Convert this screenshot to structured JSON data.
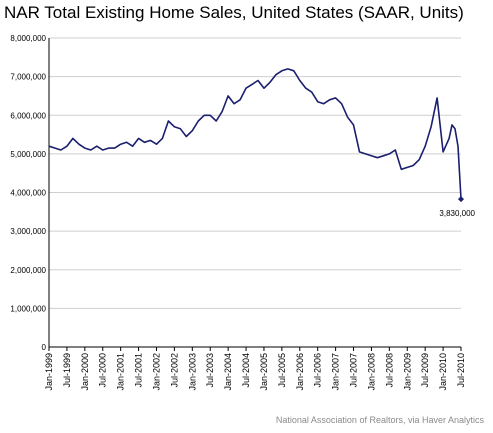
{
  "title": "NAR Total Existing Home Sales, United States (SAAR, Units)",
  "source": "National Association of Realtors, via Haver Analytics",
  "chart_data": {
    "type": "line",
    "title": "NAR Total Existing Home Sales, United States (SAAR, Units)",
    "xlabel": "",
    "ylabel": "",
    "ylim": [
      0,
      8000000
    ],
    "xlim": [
      "1999-01",
      "2010-07"
    ],
    "grid": "horizontal",
    "line_color": "#1a1f6e",
    "yticks": [
      0,
      1000000,
      2000000,
      3000000,
      4000000,
      5000000,
      6000000,
      7000000,
      8000000
    ],
    "ytick_labels": [
      "0",
      "1,000,000",
      "2,000,000",
      "3,000,000",
      "4,000,000",
      "5,000,000",
      "6,000,000",
      "7,000,000",
      "8,000,000"
    ],
    "xtick_labels": [
      "Jan-1999",
      "Jul-1999",
      "Jan-2000",
      "Jul-2000",
      "Jan-2001",
      "Jul-2001",
      "Jan-2002",
      "Jul-2002",
      "Jan-2003",
      "Jul-2003",
      "Jan-2004",
      "Jul-2004",
      "Jan-2005",
      "Jul-2005",
      "Jan-2006",
      "Jul-2006",
      "Jan-2007",
      "Jul-2007",
      "Jan-2008",
      "Jul-2008",
      "Jan-2009",
      "Jul-2009",
      "Jan-2010",
      "Jul-2010"
    ],
    "annotation": {
      "text": "3,830,000",
      "date": "2010-07",
      "value": 3830000
    },
    "series": [
      {
        "points": [
          [
            "1999-01",
            5200000
          ],
          [
            "1999-03",
            5150000
          ],
          [
            "1999-05",
            5100000
          ],
          [
            "1999-07",
            5200000
          ],
          [
            "1999-09",
            5400000
          ],
          [
            "1999-11",
            5250000
          ],
          [
            "2000-01",
            5150000
          ],
          [
            "2000-03",
            5100000
          ],
          [
            "2000-05",
            5200000
          ],
          [
            "2000-07",
            5100000
          ],
          [
            "2000-09",
            5150000
          ],
          [
            "2000-11",
            5150000
          ],
          [
            "2001-01",
            5250000
          ],
          [
            "2001-03",
            5300000
          ],
          [
            "2001-05",
            5200000
          ],
          [
            "2001-07",
            5400000
          ],
          [
            "2001-09",
            5300000
          ],
          [
            "2001-11",
            5350000
          ],
          [
            "2002-01",
            5250000
          ],
          [
            "2002-03",
            5400000
          ],
          [
            "2002-05",
            5850000
          ],
          [
            "2002-07",
            5700000
          ],
          [
            "2002-09",
            5650000
          ],
          [
            "2002-11",
            5450000
          ],
          [
            "2003-01",
            5600000
          ],
          [
            "2003-03",
            5850000
          ],
          [
            "2003-05",
            6000000
          ],
          [
            "2003-07",
            6000000
          ],
          [
            "2003-09",
            5850000
          ],
          [
            "2003-11",
            6100000
          ],
          [
            "2004-01",
            6500000
          ],
          [
            "2004-03",
            6300000
          ],
          [
            "2004-05",
            6400000
          ],
          [
            "2004-07",
            6700000
          ],
          [
            "2004-09",
            6800000
          ],
          [
            "2004-11",
            6900000
          ],
          [
            "2005-01",
            6700000
          ],
          [
            "2005-03",
            6850000
          ],
          [
            "2005-05",
            7050000
          ],
          [
            "2005-07",
            7150000
          ],
          [
            "2005-09",
            7200000
          ],
          [
            "2005-11",
            7150000
          ],
          [
            "2006-01",
            6900000
          ],
          [
            "2006-03",
            6700000
          ],
          [
            "2006-05",
            6600000
          ],
          [
            "2006-07",
            6350000
          ],
          [
            "2006-09",
            6300000
          ],
          [
            "2006-11",
            6400000
          ],
          [
            "2007-01",
            6450000
          ],
          [
            "2007-03",
            6300000
          ],
          [
            "2007-05",
            5950000
          ],
          [
            "2007-07",
            5750000
          ],
          [
            "2007-09",
            5050000
          ],
          [
            "2007-11",
            5000000
          ],
          [
            "2008-01",
            4950000
          ],
          [
            "2008-03",
            4900000
          ],
          [
            "2008-05",
            4950000
          ],
          [
            "2008-07",
            5000000
          ],
          [
            "2008-09",
            5100000
          ],
          [
            "2008-11",
            4600000
          ],
          [
            "2009-01",
            4650000
          ],
          [
            "2009-03",
            4700000
          ],
          [
            "2009-05",
            4850000
          ],
          [
            "2009-07",
            5200000
          ],
          [
            "2009-09",
            5700000
          ],
          [
            "2009-11",
            6450000
          ],
          [
            "2010-01",
            5050000
          ],
          [
            "2010-03",
            5400000
          ],
          [
            "2010-04",
            5750000
          ],
          [
            "2010-05",
            5650000
          ],
          [
            "2010-06",
            5200000
          ],
          [
            "2010-07",
            3830000
          ]
        ]
      }
    ]
  }
}
